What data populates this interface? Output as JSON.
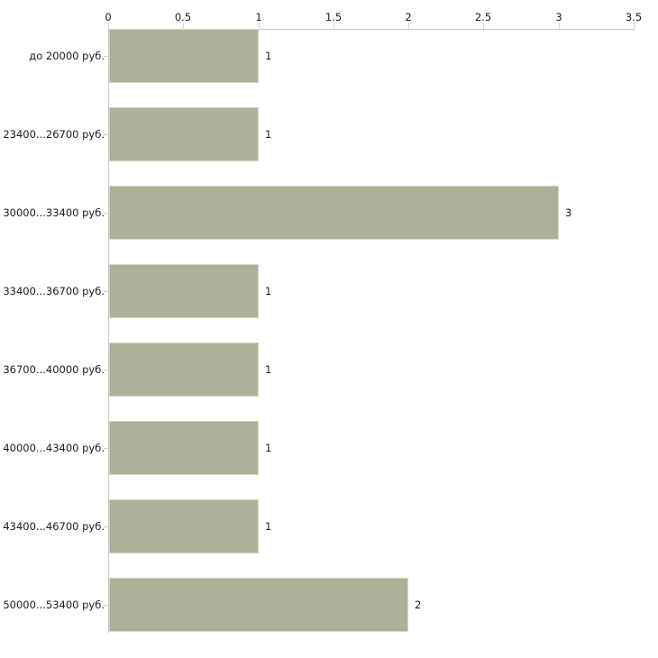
{
  "chart_data": {
    "type": "bar",
    "orientation": "horizontal",
    "title": "",
    "xlabel": "",
    "ylabel": "",
    "categories": [
      "до 20000 руб.",
      "23400...26700 руб.",
      "30000...33400 руб.",
      "33400...36700 руб.",
      "36700...40000 руб.",
      "40000...43400 руб.",
      "43400...46700 руб.",
      "50000...53400 руб."
    ],
    "values": [
      1,
      1,
      3,
      1,
      1,
      1,
      1,
      2
    ],
    "value_labels": [
      "1",
      "1",
      "3",
      "1",
      "1",
      "1",
      "1",
      "2"
    ],
    "x_ticks": [
      0,
      0.5,
      1,
      1.5,
      2,
      2.5,
      3,
      3.5
    ],
    "x_tick_labels": [
      "0",
      "0.5",
      "1",
      "1.5",
      "2",
      "2.5",
      "3",
      "3.5"
    ],
    "xlim": [
      0,
      3.5
    ],
    "axis_position": "top",
    "grid": false,
    "legend": false,
    "colors": {
      "bar_fill": "#abb098",
      "bar_edge": "#d4d7c7",
      "axis_line": "#c8c8c8",
      "tick_mark": "#d9dcc3",
      "text": "#1c1c1c",
      "background": "#ffffff"
    }
  }
}
